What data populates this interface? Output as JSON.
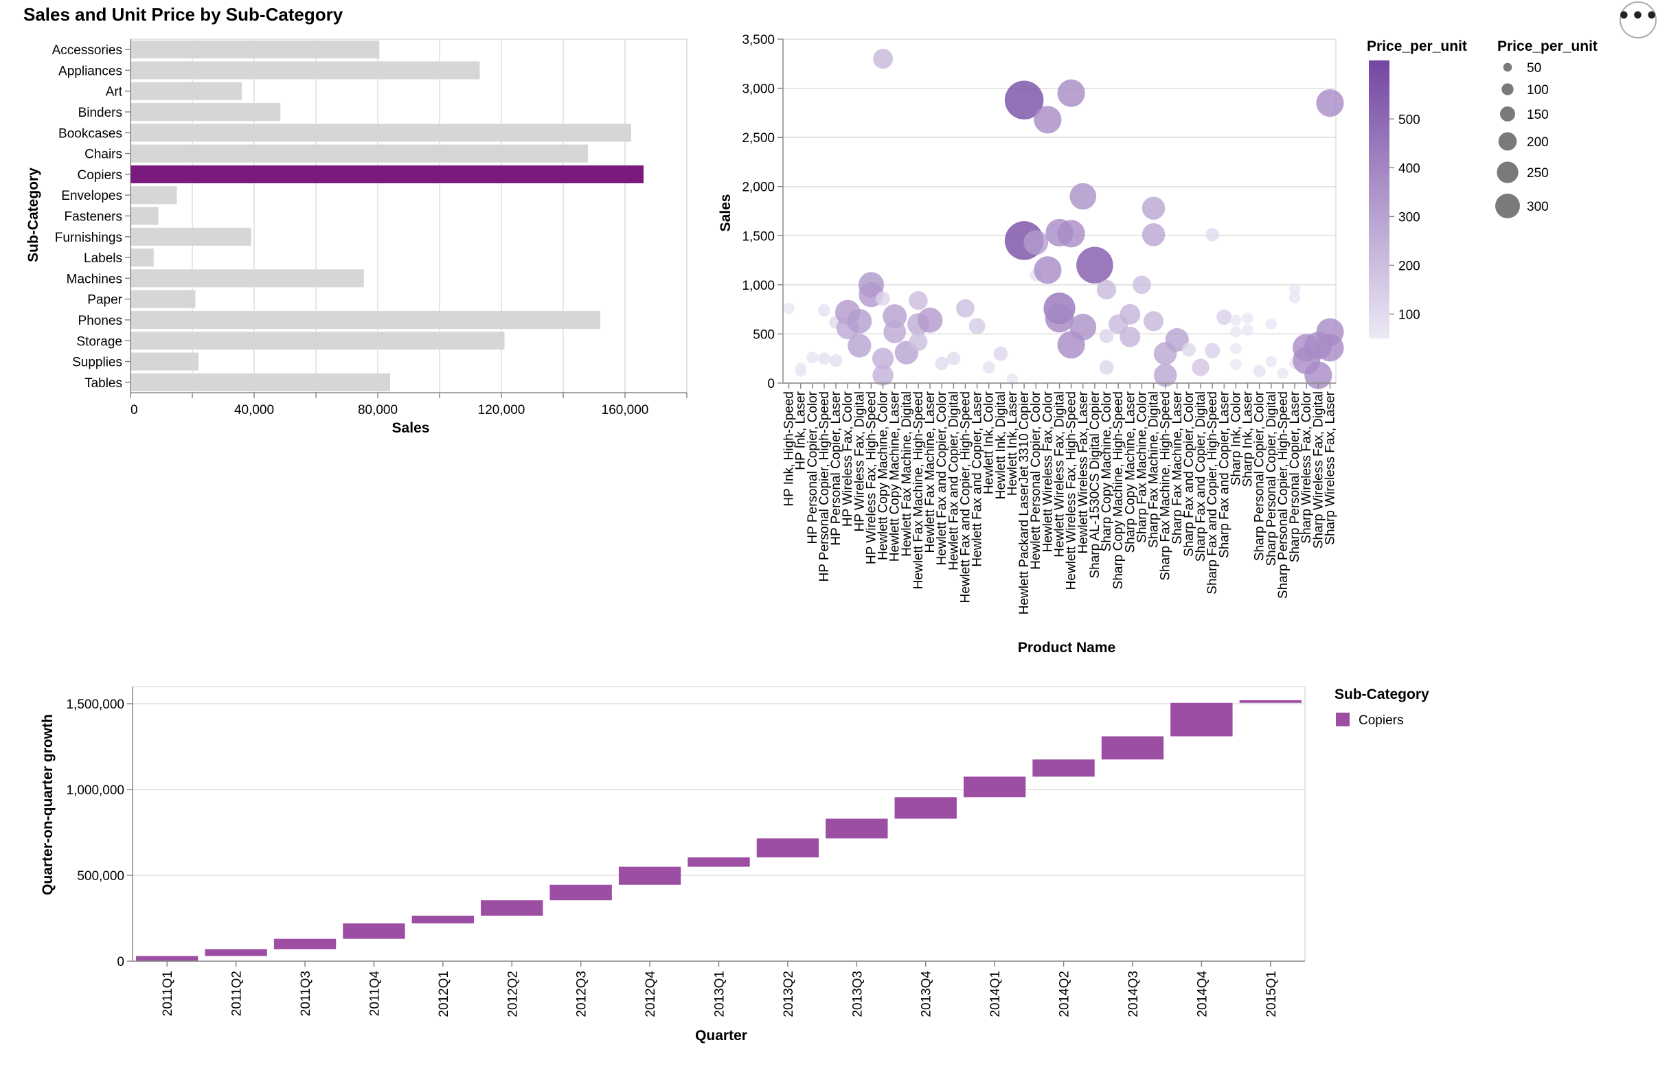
{
  "title": "Sales and Unit Price by Sub-Category",
  "menu_icon": "more-horizontal-icon",
  "colors": {
    "highlight": "#7a1a7e",
    "bar_default": "#d6d6d6",
    "waterfall": "#9c4ea3",
    "grid": "#dddddd",
    "domain": "#888888"
  },
  "chart_data": [
    {
      "type": "bar",
      "orientation": "horizontal",
      "categories": [
        "Accessories",
        "Appliances",
        "Art",
        "Binders",
        "Bookcases",
        "Chairs",
        "Copiers",
        "Envelopes",
        "Fasteners",
        "Furnishings",
        "Labels",
        "Machines",
        "Paper",
        "Phones",
        "Storage",
        "Supplies",
        "Tables"
      ],
      "values": [
        80500,
        113000,
        36000,
        48500,
        162000,
        148000,
        166000,
        15000,
        9000,
        39000,
        7500,
        75500,
        21000,
        152000,
        121000,
        22000,
        84000
      ],
      "highlight": "Copiers",
      "xlabel": "Sales",
      "ylabel": "Sub-Category",
      "xlim": [
        0,
        180000
      ],
      "xticks": [
        0,
        40000,
        80000,
        120000,
        160000
      ],
      "xtick_labels": [
        "0",
        "40,000",
        "80,000",
        "120,000",
        "160,000"
      ],
      "grid": true
    },
    {
      "type": "scatter",
      "xlabel": "Product Name",
      "ylabel": "Sales",
      "ylim": [
        0,
        3500
      ],
      "yticks": [
        0,
        500,
        1000,
        1500,
        2000,
        2500,
        3000,
        3500
      ],
      "ytick_labels": [
        "0",
        "500",
        "1,000",
        "1,500",
        "2,000",
        "2,500",
        "3,000",
        "3,500"
      ],
      "categories": [
        "HP Ink, High-Speed",
        "HP Ink, Laser",
        "HP Personal Copier, Color",
        "HP Personal Copier, High-Speed",
        "HP Personal Copier, Laser",
        "HP Wireless Fax, Color",
        "HP Wireless Fax, Digital",
        "HP Wireless Fax, High-Speed",
        "Hewlett Copy Machine, Color",
        "Hewlett Copy Machine, Laser",
        "Hewlett Fax Machine, Digital",
        "Hewlett Fax Machine, High-Speed",
        "Hewlett Fax Machine, Laser",
        "Hewlett Fax and Copier, Color",
        "Hewlett Fax and Copier, Digital",
        "Hewlett Fax and Copier, High-Speed",
        "Hewlett Fax and Copier, Laser",
        "Hewlett Ink, Color",
        "Hewlett Ink, Digital",
        "Hewlett Ink, Laser",
        "Hewlett Packard LaserJet 3310 Copier",
        "Hewlett Personal Copier, Color",
        "Hewlett Wireless Fax, Color",
        "Hewlett Wireless Fax, Digital",
        "Hewlett Wireless Fax, High-Speed",
        "Hewlett Wireless Fax, Laser",
        "Sharp AL-1530CS Digital Copier",
        "Sharp Copy Machine, Color",
        "Sharp Copy Machine, High-Speed",
        "Sharp Copy Machine, Laser",
        "Sharp Fax Machine, Color",
        "Sharp Fax Machine, Digital",
        "Sharp Fax Machine, High-Speed",
        "Sharp Fax Machine, Laser",
        "Sharp Fax and Copier, Color",
        "Sharp Fax and Copier, Digital",
        "Sharp Fax and Copier, High-Speed",
        "Sharp Fax and Copier, Laser",
        "Sharp Ink, Color",
        "Sharp Ink, Laser",
        "Sharp Personal Copier, Color",
        "Sharp Personal Copier, Digital",
        "Sharp Personal Copier, High-Speed",
        "Sharp Personal Copier, Laser",
        "Sharp Wireless Fax, Color",
        "Sharp Wireless Fax, Digital",
        "Sharp Wireless Fax, Laser"
      ],
      "points": [
        {
          "x": "HP Ink, High-Speed",
          "y": 760,
          "price": 60
        },
        {
          "x": "HP Ink, Laser",
          "y": 150,
          "price": 60
        },
        {
          "x": "HP Ink, Laser",
          "y": 120,
          "price": 60
        },
        {
          "x": "HP Personal Copier, Color",
          "y": 260,
          "price": 70
        },
        {
          "x": "HP Personal Copier, High-Speed",
          "y": 740,
          "price": 80
        },
        {
          "x": "HP Personal Copier, High-Speed",
          "y": 250,
          "price": 80
        },
        {
          "x": "HP Personal Copier, Laser",
          "y": 620,
          "price": 100
        },
        {
          "x": "HP Personal Copier, Laser",
          "y": 230,
          "price": 90
        },
        {
          "x": "HP Wireless Fax, Color",
          "y": 720,
          "price": 330
        },
        {
          "x": "HP Wireless Fax, Color",
          "y": 560,
          "price": 280
        },
        {
          "x": "HP Wireless Fax, Digital",
          "y": 630,
          "price": 320
        },
        {
          "x": "HP Wireless Fax, Digital",
          "y": 380,
          "price": 300
        },
        {
          "x": "HP Wireless Fax, High-Speed",
          "y": 1000,
          "price": 340
        },
        {
          "x": "HP Wireless Fax, High-Speed",
          "y": 900,
          "price": 330
        },
        {
          "x": "Hewlett Copy Machine, Color",
          "y": 3300,
          "price": 230
        },
        {
          "x": "Hewlett Copy Machine, Color",
          "y": 860,
          "price": 120
        },
        {
          "x": "Hewlett Copy Machine, Color",
          "y": 250,
          "price": 260
        },
        {
          "x": "Hewlett Copy Machine, Color",
          "y": 80,
          "price": 250
        },
        {
          "x": "Hewlett Copy Machine, Laser",
          "y": 680,
          "price": 310
        },
        {
          "x": "Hewlett Copy Machine, Laser",
          "y": 520,
          "price": 280
        },
        {
          "x": "Hewlett Fax Machine, Digital",
          "y": 310,
          "price": 300
        },
        {
          "x": "Hewlett Fax Machine, High-Speed",
          "y": 840,
          "price": 210
        },
        {
          "x": "Hewlett Fax Machine, High-Speed",
          "y": 600,
          "price": 270
        },
        {
          "x": "Hewlett Fax Machine, High-Speed",
          "y": 420,
          "price": 200
        },
        {
          "x": "Hewlett Fax Machine, Laser",
          "y": 640,
          "price": 330
        },
        {
          "x": "Hewlett Fax and Copier, Color",
          "y": 200,
          "price": 100
        },
        {
          "x": "Hewlett Fax and Copier, Digital",
          "y": 250,
          "price": 100
        },
        {
          "x": "Hewlett Fax and Copier, High-Speed",
          "y": 760,
          "price": 200
        },
        {
          "x": "Hewlett Fax and Copier, Laser",
          "y": 580,
          "price": 160
        },
        {
          "x": "Hewlett Ink, Color",
          "y": 160,
          "price": 80
        },
        {
          "x": "Hewlett Ink, Digital",
          "y": 300,
          "price": 120
        },
        {
          "x": "Hewlett Ink, Laser",
          "y": 40,
          "price": 60
        },
        {
          "x": "Hewlett Packard LaserJet 3310 Copier",
          "y": 2880,
          "price": 600
        },
        {
          "x": "Hewlett Packard LaserJet 3310 Copier",
          "y": 1450,
          "price": 600
        },
        {
          "x": "Hewlett Personal Copier, Color",
          "y": 1100,
          "price": 80
        },
        {
          "x": "Hewlett Personal Copier, Color",
          "y": 1430,
          "price": 320
        },
        {
          "x": "Hewlett Wireless Fax, Color",
          "y": 2680,
          "price": 380
        },
        {
          "x": "Hewlett Wireless Fax, Color",
          "y": 1150,
          "price": 380
        },
        {
          "x": "Hewlett Wireless Fax, Digital",
          "y": 1530,
          "price": 380
        },
        {
          "x": "Hewlett Wireless Fax, Digital",
          "y": 760,
          "price": 460
        },
        {
          "x": "Hewlett Wireless Fax, Digital",
          "y": 660,
          "price": 400
        },
        {
          "x": "Hewlett Wireless Fax, High-Speed",
          "y": 2950,
          "price": 380
        },
        {
          "x": "Hewlett Wireless Fax, High-Speed",
          "y": 1520,
          "price": 380
        },
        {
          "x": "Hewlett Wireless Fax, High-Speed",
          "y": 390,
          "price": 380
        },
        {
          "x": "Hewlett Wireless Fax, Laser",
          "y": 1900,
          "price": 360
        },
        {
          "x": "Hewlett Wireless Fax, Laser",
          "y": 570,
          "price": 360
        },
        {
          "x": "Sharp AL-1530CS Digital Copier",
          "y": 1200,
          "price": 560
        },
        {
          "x": "Sharp Copy Machine, Color",
          "y": 950,
          "price": 220
        },
        {
          "x": "Sharp Copy Machine, Color",
          "y": 480,
          "price": 120
        },
        {
          "x": "Sharp Copy Machine, Color",
          "y": 160,
          "price": 120
        },
        {
          "x": "Sharp Copy Machine, High-Speed",
          "y": 600,
          "price": 220
        },
        {
          "x": "Sharp Copy Machine, Laser",
          "y": 700,
          "price": 240
        },
        {
          "x": "Sharp Copy Machine, Laser",
          "y": 470,
          "price": 240
        },
        {
          "x": "Sharp Fax Machine, Color",
          "y": 1000,
          "price": 200
        },
        {
          "x": "Sharp Fax Machine, Digital",
          "y": 1780,
          "price": 290
        },
        {
          "x": "Sharp Fax Machine, Digital",
          "y": 1510,
          "price": 290
        },
        {
          "x": "Sharp Fax Machine, Digital",
          "y": 630,
          "price": 230
        },
        {
          "x": "Sharp Fax Machine, High-Speed",
          "y": 300,
          "price": 290
        },
        {
          "x": "Sharp Fax Machine, High-Speed",
          "y": 80,
          "price": 290
        },
        {
          "x": "Sharp Fax Machine, Laser",
          "y": 440,
          "price": 300
        },
        {
          "x": "Sharp Fax and Copier, Color",
          "y": 340,
          "price": 110
        },
        {
          "x": "Sharp Fax and Copier, Digital",
          "y": 160,
          "price": 180
        },
        {
          "x": "Sharp Fax and Copier, High-Speed",
          "y": 1510,
          "price": 100
        },
        {
          "x": "Sharp Fax and Copier, High-Speed",
          "y": 330,
          "price": 140
        },
        {
          "x": "Sharp Fax and Copier, Laser",
          "y": 670,
          "price": 140
        },
        {
          "x": "Sharp Ink, Color",
          "y": 640,
          "price": 60
        },
        {
          "x": "Sharp Ink, Color",
          "y": 520,
          "price": 60
        },
        {
          "x": "Sharp Ink, Color",
          "y": 350,
          "price": 60
        },
        {
          "x": "Sharp Ink, Color",
          "y": 190,
          "price": 60
        },
        {
          "x": "Sharp Ink, Laser",
          "y": 660,
          "price": 60
        },
        {
          "x": "Sharp Ink, Laser",
          "y": 540,
          "price": 60
        },
        {
          "x": "Sharp Personal Copier, Color",
          "y": 120,
          "price": 80
        },
        {
          "x": "Sharp Personal Copier, Digital",
          "y": 600,
          "price": 60
        },
        {
          "x": "Sharp Personal Copier, Digital",
          "y": 220,
          "price": 60
        },
        {
          "x": "Sharp Personal Copier, High-Speed",
          "y": 100,
          "price": 60
        },
        {
          "x": "Sharp Personal Copier, Laser",
          "y": 960,
          "price": 60
        },
        {
          "x": "Sharp Personal Copier, Laser",
          "y": 870,
          "price": 60
        },
        {
          "x": "Sharp Personal Copier, Laser",
          "y": 200,
          "price": 60
        },
        {
          "x": "Sharp Wireless Fax, Color",
          "y": 360,
          "price": 380
        },
        {
          "x": "Sharp Wireless Fax, Color",
          "y": 230,
          "price": 380
        },
        {
          "x": "Sharp Wireless Fax, Digital",
          "y": 380,
          "price": 380
        },
        {
          "x": "Sharp Wireless Fax, Digital",
          "y": 80,
          "price": 380
        },
        {
          "x": "Sharp Wireless Fax, Laser",
          "y": 2850,
          "price": 380
        },
        {
          "x": "Sharp Wireless Fax, Laser",
          "y": 520,
          "price": 380
        },
        {
          "x": "Sharp Wireless Fax, Laser",
          "y": 360,
          "price": 380
        }
      ],
      "color_legend": {
        "title": "Price_per_unit",
        "ticks": [
          100,
          200,
          300,
          400,
          500
        ],
        "domain": [
          50,
          620
        ],
        "range": [
          "#ece9f5",
          "#7447a2"
        ]
      },
      "size_legend": {
        "title": "Price_per_unit",
        "values": [
          50,
          100,
          150,
          200,
          250,
          300
        ],
        "labels": [
          "50",
          "100",
          "150",
          "200",
          "250",
          "300"
        ]
      },
      "grid": true
    },
    {
      "type": "waterfall",
      "xlabel": "Quarter",
      "ylabel": "Quarter-on-quarter growth",
      "ylim": [
        0,
        1600000
      ],
      "yticks": [
        0,
        500000,
        1000000,
        1500000
      ],
      "ytick_labels": [
        "0",
        "500,000",
        "1,000,000",
        "1,500,000"
      ],
      "categories": [
        "2011Q1",
        "2011Q2",
        "2011Q3",
        "2011Q4",
        "2012Q1",
        "2012Q2",
        "2012Q3",
        "2012Q4",
        "2013Q1",
        "2013Q2",
        "2013Q3",
        "2013Q4",
        "2014Q1",
        "2014Q2",
        "2014Q3",
        "2014Q4",
        "2015Q1"
      ],
      "start": [
        0,
        30000,
        70000,
        130000,
        220000,
        265000,
        355000,
        445000,
        550000,
        605000,
        715000,
        830000,
        955000,
        1075000,
        1175000,
        1310000,
        1505000
      ],
      "end": [
        30000,
        70000,
        130000,
        220000,
        265000,
        355000,
        445000,
        550000,
        605000,
        715000,
        830000,
        955000,
        1075000,
        1175000,
        1310000,
        1505000,
        1520000
      ],
      "legend": {
        "title": "Sub-Category",
        "items": [
          "Copiers"
        ]
      },
      "grid": true
    }
  ]
}
